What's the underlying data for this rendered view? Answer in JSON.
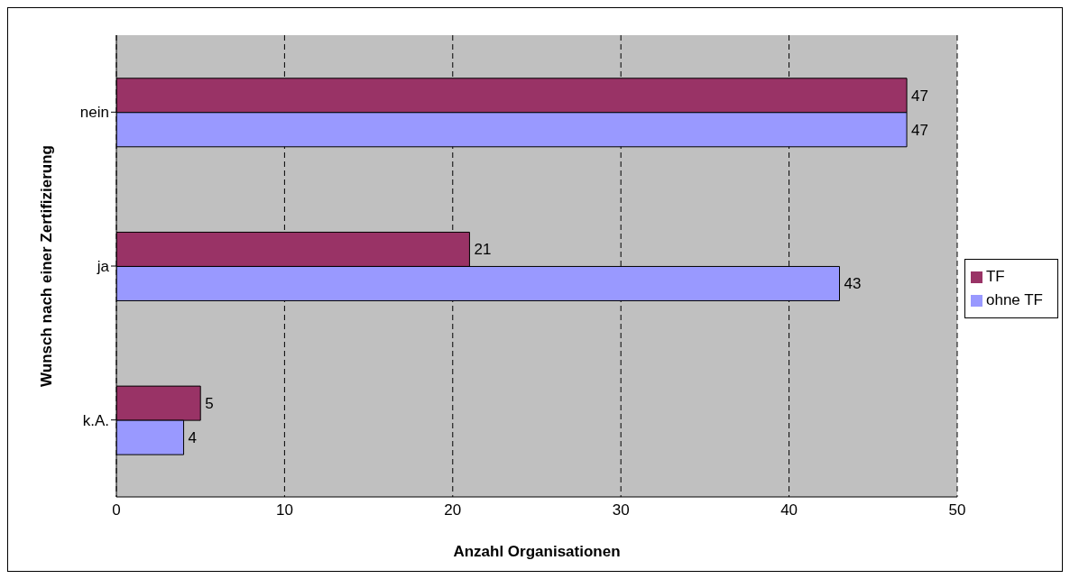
{
  "chart_data": {
    "type": "bar",
    "orientation": "horizontal",
    "xlabel": "Anzahl Organisationen",
    "ylabel": "Wunsch nach einer Zertifizierung",
    "categories": [
      "nein",
      "ja",
      "k.A."
    ],
    "series": [
      {
        "name": "TF",
        "color": "#993366",
        "values": [
          47,
          21,
          5
        ]
      },
      {
        "name": "ohne TF",
        "color": "#9999ff",
        "values": [
          47,
          43,
          4
        ]
      }
    ],
    "xlim": [
      0,
      50
    ],
    "xticks": [
      0,
      10,
      20,
      30,
      40,
      50
    ],
    "grid": "x",
    "legend": "right",
    "data_labels": true
  }
}
